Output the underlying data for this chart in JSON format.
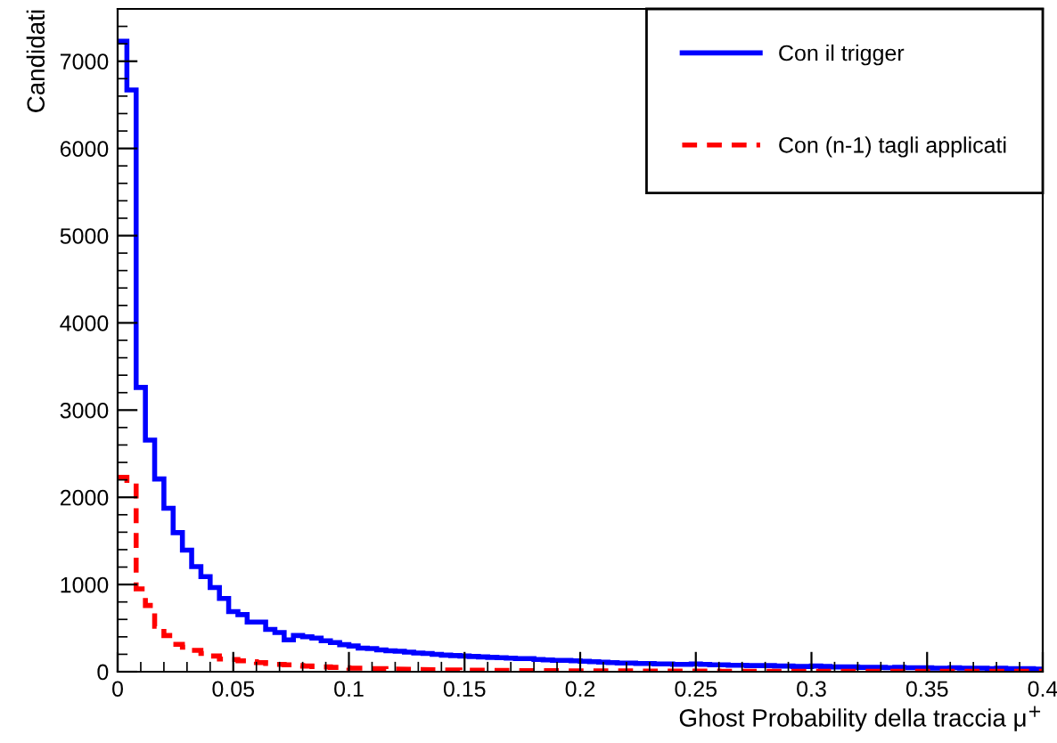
{
  "chart_data": {
    "type": "histogram",
    "xlabel": "Ghost Probability della traccia μ$^{+}$",
    "ylabel": "Candidati",
    "bins": [
      0,
      0.004,
      0.008,
      0.012,
      0.016,
      0.02,
      0.024,
      0.028,
      0.032,
      0.036,
      0.04,
      0.044,
      0.048,
      0.052,
      0.056,
      0.06,
      0.064,
      0.068,
      0.072,
      0.076,
      0.08,
      0.084,
      0.088,
      0.092,
      0.096,
      0.1,
      0.104,
      0.108,
      0.112,
      0.116,
      0.12,
      0.124,
      0.128,
      0.132,
      0.136,
      0.14,
      0.144,
      0.148,
      0.152,
      0.156,
      0.16,
      0.164,
      0.168,
      0.172,
      0.176,
      0.18,
      0.184,
      0.188,
      0.192,
      0.196,
      0.2,
      0.204,
      0.208,
      0.212,
      0.216,
      0.22,
      0.224,
      0.228,
      0.232,
      0.236,
      0.24,
      0.244,
      0.248,
      0.252,
      0.256,
      0.26,
      0.264,
      0.268,
      0.272,
      0.276,
      0.28,
      0.284,
      0.288,
      0.292,
      0.296,
      0.3,
      0.304,
      0.308,
      0.312,
      0.316,
      0.32,
      0.324,
      0.328,
      0.332,
      0.336,
      0.34,
      0.344,
      0.348,
      0.352,
      0.356,
      0.36,
      0.364,
      0.368,
      0.372,
      0.376,
      0.38,
      0.384,
      0.388,
      0.392,
      0.396,
      0.4
    ],
    "series": [
      {
        "name": "Con il trigger",
        "color": "#0000ff",
        "line_style": "solid",
        "values": [
          7230,
          6670,
          3260,
          2655,
          2210,
          1875,
          1595,
          1395,
          1205,
          1090,
          965,
          840,
          690,
          655,
          570,
          570,
          485,
          450,
          365,
          415,
          400,
          385,
          355,
          335,
          310,
          295,
          270,
          265,
          250,
          240,
          235,
          225,
          215,
          210,
          200,
          190,
          185,
          180,
          175,
          170,
          165,
          160,
          155,
          150,
          150,
          140,
          135,
          130,
          130,
          125,
          120,
          115,
          110,
          105,
          100,
          100,
          95,
          95,
          90,
          90,
          85,
          85,
          90,
          85,
          80,
          80,
          75,
          75,
          70,
          70,
          70,
          65,
          65,
          60,
          60,
          65,
          60,
          55,
          55,
          55,
          50,
          50,
          50,
          45,
          50,
          45,
          45,
          45,
          40,
          40,
          45,
          40,
          40,
          40,
          35,
          40,
          35,
          35,
          35,
          30
        ]
      },
      {
        "name": "Con (n-1) tagli applicati",
        "color": "#ff0000",
        "line_style": "dashed",
        "values": [
          2230,
          2130,
          950,
          760,
          520,
          415,
          315,
          280,
          245,
          210,
          180,
          145,
          140,
          125,
          115,
          105,
          95,
          85,
          80,
          70,
          65,
          60,
          55,
          50,
          45,
          40,
          40,
          35,
          35,
          30,
          30,
          28,
          26,
          24,
          22,
          20,
          20,
          18,
          18,
          16,
          16,
          15,
          14,
          14,
          13,
          12,
          12,
          11,
          11,
          10,
          10,
          10,
          9,
          9,
          9,
          8,
          8,
          8,
          8,
          7,
          7,
          7,
          7,
          7,
          7,
          6,
          6,
          6,
          6,
          6,
          6,
          6,
          6,
          6,
          5,
          5,
          5,
          5,
          5,
          5,
          5,
          5,
          5,
          5,
          5,
          5,
          4,
          4,
          4,
          4,
          4,
          4,
          4,
          4,
          4,
          4,
          4,
          4,
          4,
          4
        ]
      }
    ],
    "xlim": [
      0,
      0.4
    ],
    "xticks": [
      0,
      0.05,
      0.1,
      0.15,
      0.2,
      0.25,
      0.3,
      0.35,
      0.4
    ],
    "ylim": [
      0,
      7600
    ],
    "yticks": [
      0,
      1000,
      2000,
      3000,
      4000,
      5000,
      6000,
      7000
    ],
    "legend": "top right",
    "grid": false
  }
}
